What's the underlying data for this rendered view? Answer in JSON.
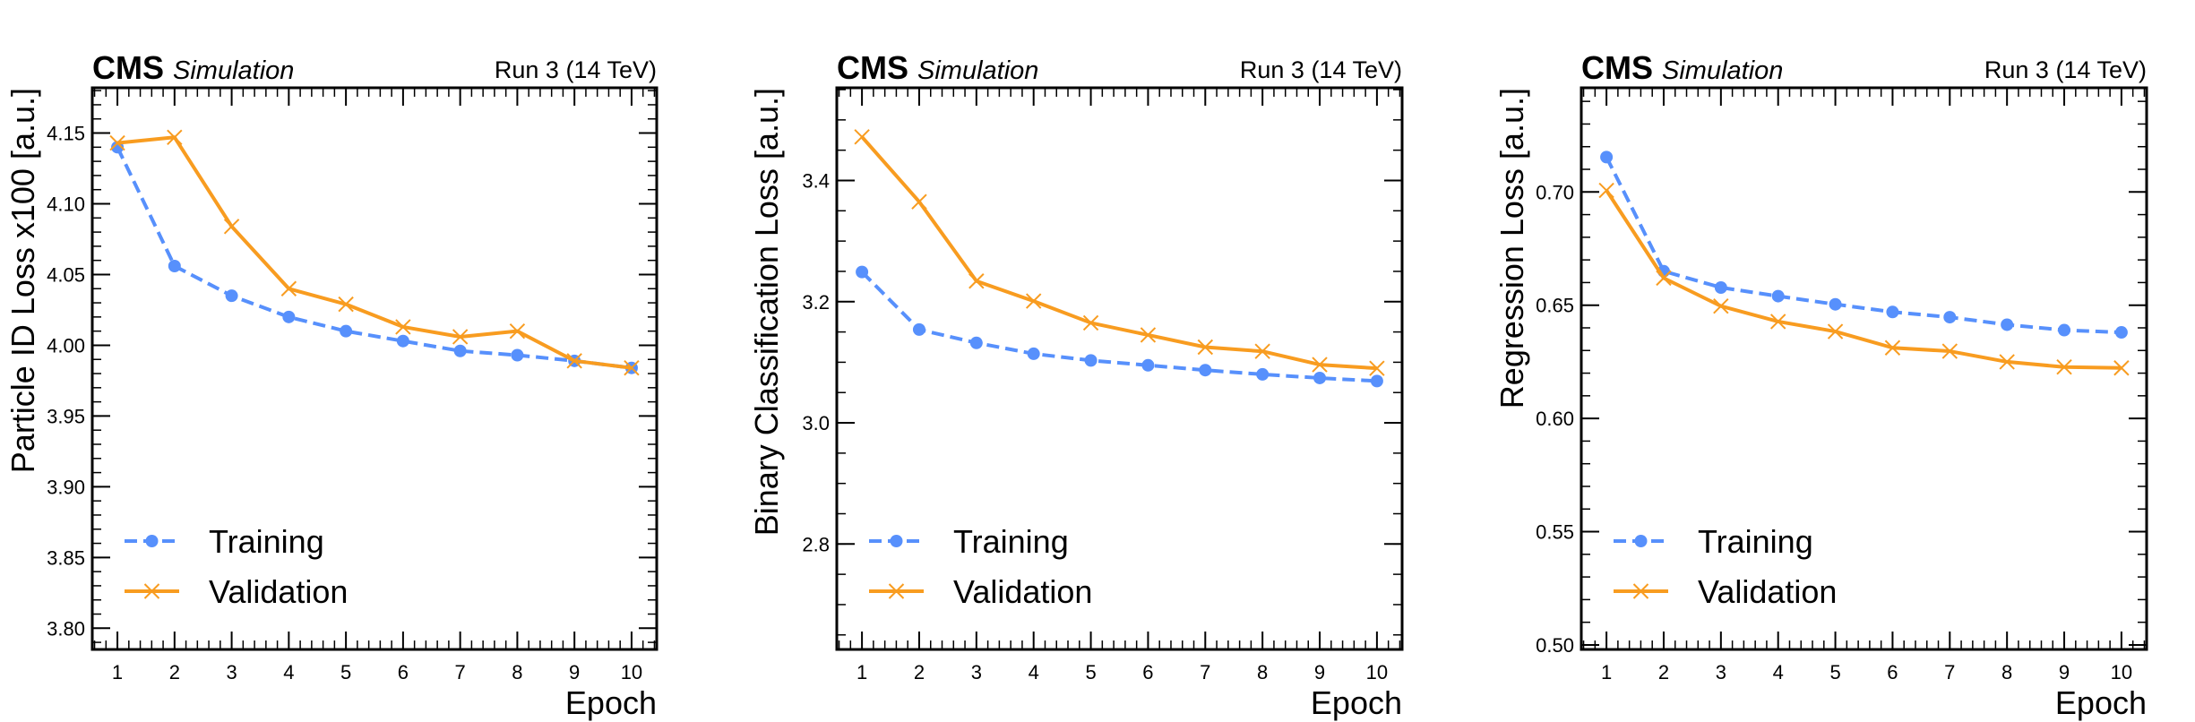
{
  "figure": {
    "experiment_label": "CMS",
    "status_label": "Simulation",
    "energy_label": "Run 3 (14 TeV)"
  },
  "legend": {
    "training": "Training",
    "validation": "Validation"
  },
  "colors": {
    "training": "#5790fc",
    "validation": "#f89c20"
  },
  "chart_data": [
    {
      "type": "line",
      "title": "",
      "xlabel": "Epoch",
      "ylabel": "Particle ID Loss x100 [a.u.]",
      "x": [
        1,
        2,
        3,
        4,
        5,
        6,
        7,
        8,
        9,
        10
      ],
      "xlim": [
        0.56,
        10.44
      ],
      "ylim": [
        3.785,
        4.182
      ],
      "yticks": [
        3.8,
        3.85,
        3.9,
        3.95,
        4.0,
        4.05,
        4.1,
        4.15
      ],
      "ytick_labels": [
        "3.80",
        "3.85",
        "3.90",
        "3.95",
        "4.00",
        "4.05",
        "4.10",
        "4.15"
      ],
      "yminor_step": 0.01,
      "grid": false,
      "legend_position": "lower-left",
      "series": [
        {
          "name": "Training",
          "style": "dashed",
          "marker": "circle",
          "values": [
            4.14,
            4.056,
            4.035,
            4.02,
            4.01,
            4.003,
            3.996,
            3.993,
            3.989,
            3.984
          ]
        },
        {
          "name": "Validation",
          "style": "solid",
          "marker": "x",
          "values": [
            4.143,
            4.147,
            4.084,
            4.04,
            4.029,
            4.013,
            4.006,
            4.01,
            3.989,
            3.984
          ]
        }
      ]
    },
    {
      "type": "line",
      "title": "",
      "xlabel": "Epoch",
      "ylabel": "Binary Classification Loss [a.u.]",
      "x": [
        1,
        2,
        3,
        4,
        5,
        6,
        7,
        8,
        9,
        10
      ],
      "xlim": [
        0.56,
        10.44
      ],
      "ylim": [
        2.626,
        3.553
      ],
      "yticks": [
        2.8,
        3.0,
        3.2,
        3.4
      ],
      "ytick_labels": [
        "2.8",
        "3.0",
        "3.2",
        "3.4"
      ],
      "yminor_step": 0.05,
      "grid": false,
      "legend_position": "lower-left",
      "series": [
        {
          "name": "Training",
          "style": "dashed",
          "marker": "circle",
          "values": [
            3.249,
            3.154,
            3.132,
            3.114,
            3.103,
            3.095,
            3.087,
            3.08,
            3.074,
            3.069
          ]
        },
        {
          "name": "Validation",
          "style": "solid",
          "marker": "x",
          "values": [
            3.472,
            3.365,
            3.234,
            3.201,
            3.165,
            3.145,
            3.125,
            3.118,
            3.096,
            3.09
          ]
        }
      ]
    },
    {
      "type": "line",
      "title": "",
      "xlabel": "Epoch",
      "ylabel": "Regression Loss [a.u.]",
      "x": [
        1,
        2,
        3,
        4,
        5,
        6,
        7,
        8,
        9,
        10
      ],
      "xlim": [
        0.56,
        10.44
      ],
      "ylim": [
        0.498,
        0.746
      ],
      "yticks": [
        0.5,
        0.55,
        0.6,
        0.65,
        0.7
      ],
      "ytick_labels": [
        "0.50",
        "0.55",
        "0.60",
        "0.65",
        "0.70"
      ],
      "yminor_step": 0.01,
      "grid": false,
      "legend_position": "lower-left",
      "series": [
        {
          "name": "Training",
          "style": "dashed",
          "marker": "circle",
          "values": [
            0.7154,
            0.665,
            0.6578,
            0.654,
            0.6504,
            0.647,
            0.6447,
            0.6414,
            0.639,
            0.638
          ]
        },
        {
          "name": "Validation",
          "style": "solid",
          "marker": "x",
          "values": [
            0.7007,
            0.662,
            0.6496,
            0.6428,
            0.6384,
            0.6312,
            0.6297,
            0.625,
            0.6227,
            0.6223
          ]
        }
      ]
    }
  ]
}
